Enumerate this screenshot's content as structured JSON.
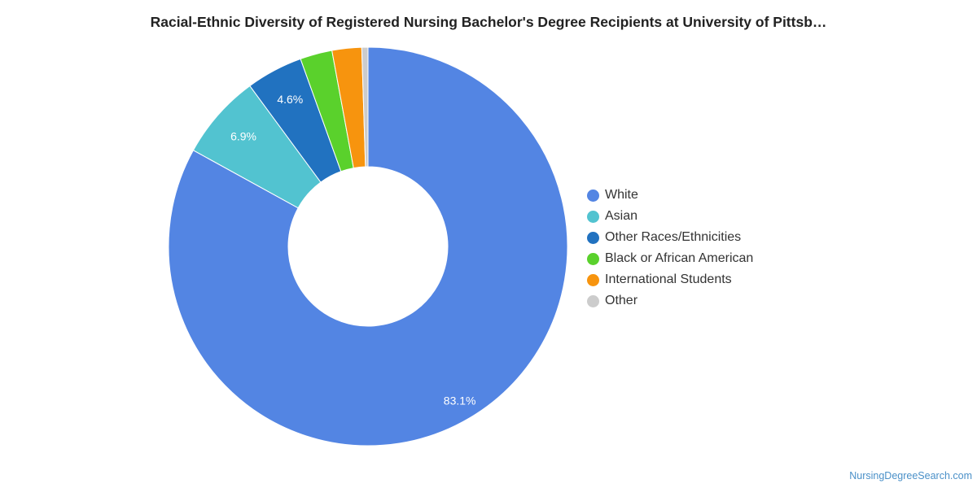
{
  "chart_data": {
    "type": "pie",
    "donut": true,
    "title": "Racial-Ethnic Diversity of Registered Nursing Bachelor's Degree Recipients at University of Pittsb…",
    "unit": "%",
    "legend_position": "right",
    "slices": [
      {
        "name": "White",
        "value": 83.1,
        "label": "83.1%",
        "color": "#5385e3"
      },
      {
        "name": "Asian",
        "value": 6.9,
        "label": "6.9%",
        "color": "#52c3d0"
      },
      {
        "name": "Other Races/Ethnicities",
        "value": 4.6,
        "label": "4.6%",
        "color": "#2172c0"
      },
      {
        "name": "Black or African American",
        "value": 2.6,
        "label": "",
        "color": "#5ad12c"
      },
      {
        "name": "International Students",
        "value": 2.4,
        "label": "",
        "color": "#f7940e"
      },
      {
        "name": "Other",
        "value": 0.5,
        "label": "",
        "color": "#cccccc"
      }
    ]
  },
  "footer": {
    "source": "NursingDegreeSearch.com"
  }
}
